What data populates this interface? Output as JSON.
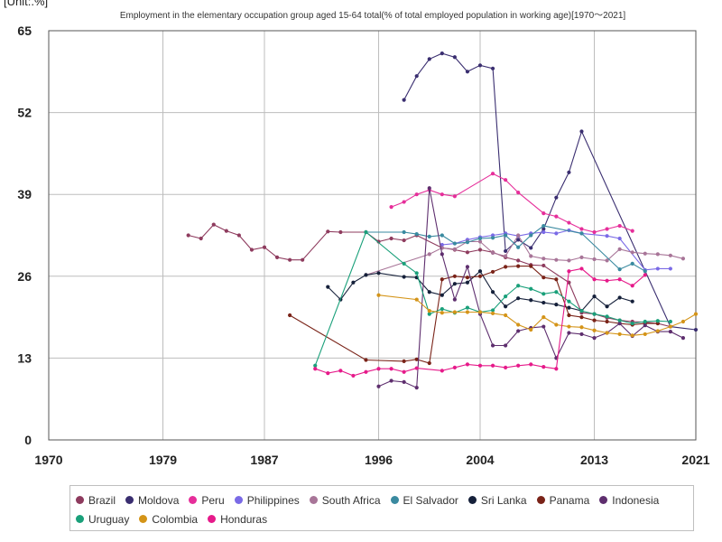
{
  "chart_data": {
    "type": "line",
    "unit_label": "[Unit:.%]",
    "title": "Employment in the elementary occupation group aged 15-64 total(% of total employed population in working age)[1970～2021]",
    "xlim": [
      1970,
      2021
    ],
    "ylim": [
      0,
      65
    ],
    "x_ticks": [
      1970,
      1979,
      1987,
      1996,
      2004,
      2013,
      2021
    ],
    "y_ticks": [
      0,
      13,
      26,
      39,
      52,
      65
    ],
    "grid": true,
    "legend_position": "bottom",
    "series": [
      {
        "name": "Brazil",
        "color": "#8e3b5e",
        "points": [
          [
            1981,
            32.5
          ],
          [
            1982,
            32
          ],
          [
            1983,
            34.2
          ],
          [
            1984,
            33.2
          ],
          [
            1985,
            32.5
          ],
          [
            1986,
            30.2
          ],
          [
            1987,
            30.6
          ],
          [
            1988,
            29
          ],
          [
            1989,
            28.6
          ],
          [
            1990,
            28.6
          ],
          [
            1992,
            33.1
          ],
          [
            1993,
            33
          ],
          [
            1995,
            33
          ],
          [
            1996,
            31.5
          ],
          [
            1997,
            32
          ],
          [
            1998,
            31.7
          ],
          [
            1999,
            32.5
          ],
          [
            2001,
            30.5
          ],
          [
            2002,
            30.2
          ],
          [
            2003,
            29.8
          ],
          [
            2004,
            30.2
          ],
          [
            2005,
            29.8
          ],
          [
            2006,
            29
          ],
          [
            2007,
            28.5
          ],
          [
            2008,
            27.8
          ],
          [
            2009,
            27.7
          ],
          [
            2011,
            25
          ],
          [
            2012,
            20.2
          ],
          [
            2013,
            20
          ],
          [
            2014,
            19.4
          ],
          [
            2015,
            19
          ],
          [
            2016,
            18.8
          ],
          [
            2017,
            18.7
          ],
          [
            2018,
            18.5
          ],
          [
            2019,
            18
          ]
        ]
      },
      {
        "name": "Moldova",
        "color": "#3a2e70",
        "points": [
          [
            1998,
            54
          ],
          [
            1999,
            57.8
          ],
          [
            2000,
            60.5
          ],
          [
            2001,
            61.4
          ],
          [
            2002,
            60.8
          ],
          [
            2003,
            58.5
          ],
          [
            2004,
            59.5
          ],
          [
            2005,
            59
          ],
          [
            2006,
            30
          ],
          [
            2007,
            31.8
          ],
          [
            2008,
            30.5
          ],
          [
            2009,
            33.5
          ],
          [
            2010,
            38.5
          ],
          [
            2011,
            42.5
          ],
          [
            2012,
            49
          ],
          [
            2019,
            18
          ],
          [
            2021,
            17.5
          ]
        ]
      },
      {
        "name": "Peru",
        "color": "#e62e9a",
        "points": [
          [
            1997,
            37
          ],
          [
            1998,
            37.8
          ],
          [
            1999,
            39
          ],
          [
            2000,
            39.7
          ],
          [
            2001,
            39
          ],
          [
            2002,
            38.7
          ],
          [
            2005,
            42.3
          ],
          [
            2006,
            41.3
          ],
          [
            2007,
            39.3
          ],
          [
            2009,
            36
          ],
          [
            2010,
            35.5
          ],
          [
            2011,
            34.5
          ],
          [
            2012,
            33.5
          ],
          [
            2013,
            33
          ],
          [
            2014,
            33.5
          ],
          [
            2015,
            34
          ],
          [
            2016,
            33.2
          ]
        ]
      },
      {
        "name": "Philippines",
        "color": "#7a6ae6",
        "points": [
          [
            2001,
            31
          ],
          [
            2002,
            31.2
          ],
          [
            2003,
            31.8
          ],
          [
            2004,
            32.2
          ],
          [
            2005,
            32.5
          ],
          [
            2006,
            32.8
          ],
          [
            2007,
            32.4
          ],
          [
            2008,
            32.8
          ],
          [
            2009,
            33
          ],
          [
            2010,
            32.8
          ],
          [
            2011,
            33.3
          ],
          [
            2012,
            32.8
          ],
          [
            2014,
            32.4
          ],
          [
            2015,
            32
          ],
          [
            2017,
            27
          ],
          [
            2018,
            27.2
          ],
          [
            2019,
            27.2
          ]
        ]
      },
      {
        "name": "South Africa",
        "color": "#a87598",
        "points": [
          [
            1995,
            26.2
          ],
          [
            2000,
            29.5
          ],
          [
            2001,
            30.5
          ],
          [
            2002,
            30.3
          ],
          [
            2003,
            31.5
          ],
          [
            2004,
            31.5
          ],
          [
            2005,
            29.7
          ],
          [
            2006,
            29.2
          ],
          [
            2007,
            32.5
          ],
          [
            2008,
            29.2
          ],
          [
            2009,
            28.8
          ],
          [
            2010,
            28.6
          ],
          [
            2011,
            28.5
          ],
          [
            2012,
            29
          ],
          [
            2013,
            28.7
          ],
          [
            2014,
            28.5
          ],
          [
            2015,
            30.3
          ],
          [
            2016,
            29.8
          ],
          [
            2017,
            29.6
          ],
          [
            2018,
            29.5
          ],
          [
            2019,
            29.3
          ],
          [
            2020,
            28.8
          ]
        ]
      },
      {
        "name": "El Salvador",
        "color": "#3a8aa0",
        "points": [
          [
            1995,
            33
          ],
          [
            1998,
            33
          ],
          [
            1999,
            32.7
          ],
          [
            2000,
            32.3
          ],
          [
            2001,
            32.5
          ],
          [
            2002,
            31.2
          ],
          [
            2003,
            31.4
          ],
          [
            2004,
            32
          ],
          [
            2005,
            32.1
          ],
          [
            2006,
            32.5
          ],
          [
            2007,
            30.6
          ],
          [
            2008,
            32.5
          ],
          [
            2009,
            34
          ],
          [
            2012,
            32.8
          ],
          [
            2015,
            27.1
          ],
          [
            2016,
            28
          ],
          [
            2017,
            26.8
          ]
        ]
      },
      {
        "name": "Sri Lanka",
        "color": "#15203a",
        "points": [
          [
            1992,
            24.3
          ],
          [
            1993,
            22.3
          ],
          [
            1994,
            25
          ],
          [
            1995,
            26.2
          ],
          [
            1996,
            26.5
          ],
          [
            1998,
            25.9
          ],
          [
            1999,
            25.8
          ],
          [
            2000,
            23.5
          ],
          [
            2001,
            23
          ],
          [
            2002,
            24.8
          ],
          [
            2003,
            25
          ],
          [
            2004,
            26.8
          ],
          [
            2005,
            23.5
          ],
          [
            2006,
            21.2
          ],
          [
            2007,
            22.5
          ],
          [
            2008,
            22.2
          ],
          [
            2009,
            21.8
          ],
          [
            2010,
            21.5
          ],
          [
            2011,
            21
          ],
          [
            2012,
            20.5
          ],
          [
            2013,
            22.8
          ],
          [
            2014,
            21.2
          ],
          [
            2015,
            22.6
          ],
          [
            2016,
            22
          ]
        ]
      },
      {
        "name": "Panama",
        "color": "#7a2318",
        "points": [
          [
            1989,
            19.8
          ],
          [
            1995,
            12.7
          ],
          [
            1998,
            12.5
          ],
          [
            1999,
            12.8
          ],
          [
            2000,
            12.2
          ],
          [
            2001,
            25.5
          ],
          [
            2002,
            26
          ],
          [
            2003,
            25.8
          ],
          [
            2004,
            26
          ],
          [
            2005,
            26.7
          ],
          [
            2006,
            27.5
          ],
          [
            2007,
            27.6
          ],
          [
            2008,
            27.6
          ],
          [
            2009,
            25.8
          ],
          [
            2010,
            25.5
          ],
          [
            2011,
            19.8
          ],
          [
            2012,
            19.5
          ],
          [
            2013,
            19
          ],
          [
            2014,
            18.8
          ],
          [
            2015,
            18.5
          ],
          [
            2016,
            18.3
          ],
          [
            2017,
            18.5
          ],
          [
            2018,
            18.5
          ]
        ]
      },
      {
        "name": "Indonesia",
        "color": "#5e2e6e",
        "points": [
          [
            1996,
            8.5
          ],
          [
            1997,
            9.4
          ],
          [
            1998,
            9.2
          ],
          [
            1999,
            8.3
          ],
          [
            2000,
            40
          ],
          [
            2001,
            29.5
          ],
          [
            2002,
            22.3
          ],
          [
            2003,
            27.5
          ],
          [
            2004,
            20
          ],
          [
            2005,
            15
          ],
          [
            2006,
            15
          ],
          [
            2007,
            17.3
          ],
          [
            2008,
            17.8
          ],
          [
            2009,
            18
          ],
          [
            2010,
            13
          ],
          [
            2011,
            17
          ],
          [
            2012,
            16.8
          ],
          [
            2013,
            16.2
          ],
          [
            2014,
            17
          ],
          [
            2015,
            18.5
          ],
          [
            2016,
            16.5
          ],
          [
            2017,
            18.2
          ],
          [
            2018,
            17.2
          ],
          [
            2019,
            17.2
          ],
          [
            2020,
            16.2
          ]
        ]
      },
      {
        "name": "Uruguay",
        "color": "#1aa07a",
        "points": [
          [
            1991,
            11.8
          ],
          [
            1995,
            33
          ],
          [
            1998,
            28
          ],
          [
            1999,
            26.5
          ],
          [
            2000,
            20
          ],
          [
            2001,
            20.8
          ],
          [
            2002,
            20.2
          ],
          [
            2003,
            21
          ],
          [
            2004,
            20.3
          ],
          [
            2005,
            20.6
          ],
          [
            2006,
            22.8
          ],
          [
            2007,
            24.5
          ],
          [
            2008,
            24
          ],
          [
            2009,
            23.2
          ],
          [
            2010,
            23.5
          ],
          [
            2011,
            22
          ],
          [
            2012,
            20.5
          ],
          [
            2013,
            20
          ],
          [
            2014,
            19.6
          ],
          [
            2015,
            19
          ],
          [
            2016,
            18.5
          ],
          [
            2017,
            18.8
          ],
          [
            2018,
            18.9
          ],
          [
            2019,
            18.8
          ]
        ]
      },
      {
        "name": "Colombia",
        "color": "#d49418",
        "points": [
          [
            1996,
            23
          ],
          [
            1999,
            22.3
          ],
          [
            2000,
            20.5
          ],
          [
            2001,
            20.2
          ],
          [
            2002,
            20.3
          ],
          [
            2003,
            20.3
          ],
          [
            2004,
            20.3
          ],
          [
            2005,
            20.1
          ],
          [
            2006,
            19.8
          ],
          [
            2007,
            18.3
          ],
          [
            2008,
            17.5
          ],
          [
            2009,
            19.5
          ],
          [
            2010,
            18.3
          ],
          [
            2011,
            18
          ],
          [
            2012,
            17.9
          ],
          [
            2013,
            17.4
          ],
          [
            2014,
            17
          ],
          [
            2015,
            16.8
          ],
          [
            2016,
            16.6
          ],
          [
            2017,
            16.8
          ],
          [
            2018,
            17.3
          ],
          [
            2019,
            18
          ],
          [
            2020,
            18.8
          ],
          [
            2021,
            20
          ]
        ]
      },
      {
        "name": "Honduras",
        "color": "#e61a8a",
        "points": [
          [
            1991,
            11.3
          ],
          [
            1992,
            10.6
          ],
          [
            1993,
            11
          ],
          [
            1994,
            10.2
          ],
          [
            1995,
            10.8
          ],
          [
            1996,
            11.3
          ],
          [
            1997,
            11.3
          ],
          [
            1998,
            10.8
          ],
          [
            1999,
            11.4
          ],
          [
            2001,
            11
          ],
          [
            2002,
            11.5
          ],
          [
            2003,
            12
          ],
          [
            2004,
            11.8
          ],
          [
            2005,
            11.8
          ],
          [
            2006,
            11.5
          ],
          [
            2007,
            11.8
          ],
          [
            2008,
            12
          ],
          [
            2009,
            11.6
          ],
          [
            2010,
            11.3
          ],
          [
            2011,
            26.8
          ],
          [
            2012,
            27.2
          ],
          [
            2013,
            25.5
          ],
          [
            2014,
            25.3
          ],
          [
            2015,
            25.5
          ],
          [
            2016,
            24.5
          ],
          [
            2017,
            26.2
          ]
        ]
      }
    ]
  }
}
